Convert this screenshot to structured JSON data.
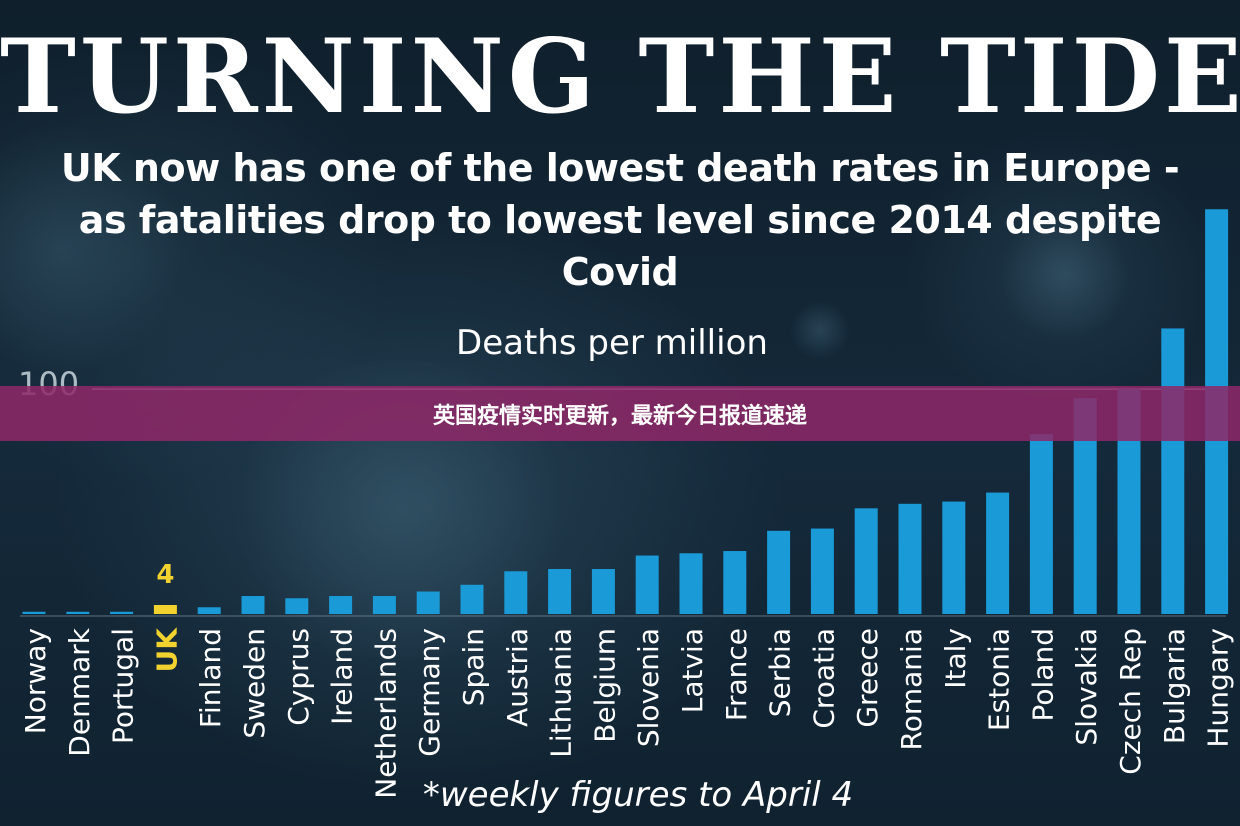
{
  "header": {
    "headline": "TURNING THE TIDE",
    "subtitle": "UK now has one of the lowest death rates in Europe - as fatalities drop to lowest level since 2014 despite Covid"
  },
  "banner": {
    "text": "英国疫情实时更新，最新今日报道速递"
  },
  "colors": {
    "bar": "#1a9ad6",
    "highlight": "#f2d22e",
    "label": "#ffffff",
    "gridline": "#c9d6df"
  },
  "chart_data": {
    "type": "bar",
    "title": "Deaths per million",
    "footnote": "*weekly figures to April 4",
    "categories": [
      "Norway",
      "Denmark",
      "Portugal",
      "UK",
      "Finland",
      "Sweden",
      "Cyprus",
      "Ireland",
      "Netherlands",
      "Germany",
      "Spain",
      "Austria",
      "Lithuania",
      "Belgium",
      "Slovenia",
      "Latvia",
      "France",
      "Serbia",
      "Croatia",
      "Greece",
      "Romania",
      "Italy",
      "Estonia",
      "Poland",
      "Slovakia",
      "Czech Rep",
      "Bulgaria",
      "Hungary"
    ],
    "values": [
      1,
      1,
      1,
      4,
      3,
      8,
      7,
      8,
      8,
      10,
      13,
      19,
      20,
      20,
      26,
      27,
      28,
      37,
      38,
      47,
      49,
      50,
      54,
      80,
      96,
      100,
      127,
      180
    ],
    "highlight": "UK",
    "highlight_value_label": "4",
    "y_reference": {
      "value": 100,
      "label": "100"
    },
    "ylim": [
      0,
      185
    ],
    "grid": false,
    "legend": "none"
  }
}
